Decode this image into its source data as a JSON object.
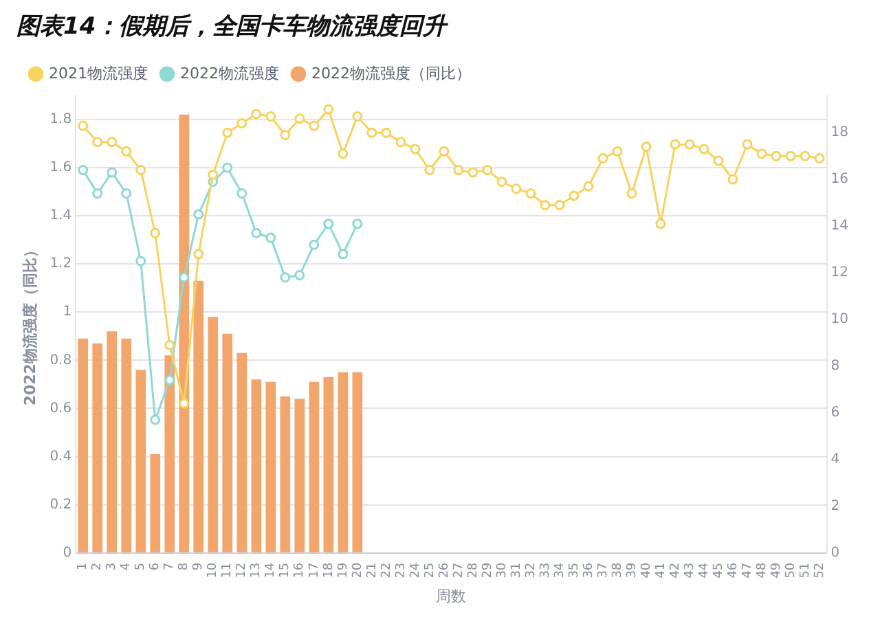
{
  "chart_data": {
    "type": "bar",
    "title": "图表14：假期后，全国卡车物流强度回升",
    "xlabel": "周数",
    "ylabel": "2022物流强度（同比）",
    "categories": [
      "1",
      "2",
      "3",
      "4",
      "5",
      "6",
      "7",
      "8",
      "9",
      "10",
      "11",
      "12",
      "13",
      "14",
      "15",
      "16",
      "17",
      "18",
      "19",
      "20",
      "21",
      "22",
      "23",
      "24",
      "25",
      "26",
      "27",
      "28",
      "29",
      "30",
      "31",
      "32",
      "33",
      "34",
      "35",
      "36",
      "37",
      "38",
      "39",
      "40",
      "41",
      "42",
      "43",
      "44",
      "45",
      "46",
      "47",
      "48",
      "49",
      "50",
      "51",
      "52"
    ],
    "series": [
      {
        "type": "line",
        "axis": "y2",
        "name": "2021物流强度",
        "color": "#f8d25e",
        "values": [
          18.3,
          17.6,
          17.6,
          17.2,
          16.4,
          13.7,
          8.9,
          6.4,
          12.8,
          16.2,
          18.0,
          18.4,
          18.8,
          18.7,
          17.9,
          18.6,
          18.3,
          19.0,
          17.1,
          18.7,
          18.0,
          18.0,
          17.6,
          17.3,
          16.4,
          17.2,
          16.4,
          16.3,
          16.4,
          15.9,
          15.6,
          15.4,
          14.9,
          14.9,
          15.3,
          15.7,
          16.9,
          17.2,
          15.4,
          17.4,
          14.1,
          17.5,
          17.5,
          17.3,
          16.8,
          16.0,
          17.5,
          17.1,
          17.0,
          17.0,
          17.0,
          16.9
        ]
      },
      {
        "type": "line",
        "axis": "y2",
        "name": "2022物流强度",
        "color": "#8fd8d3",
        "values": [
          16.4,
          15.4,
          16.3,
          15.4,
          12.5,
          5.7,
          7.4,
          11.8,
          14.5,
          15.9,
          16.5,
          15.4,
          13.7,
          13.5,
          11.8,
          11.9,
          13.2,
          14.1,
          12.8,
          14.1,
          null,
          null,
          null,
          null,
          null,
          null,
          null,
          null,
          null,
          null,
          null,
          null,
          null,
          null,
          null,
          null,
          null,
          null,
          null,
          null,
          null,
          null,
          null,
          null,
          null,
          null,
          null,
          null,
          null,
          null,
          null,
          null
        ]
      },
      {
        "axis": "y",
        "name": "2022物流强度（同比）",
        "color": "#f2a66b",
        "values": [
          0.89,
          0.87,
          0.92,
          0.89,
          0.76,
          0.41,
          0.82,
          1.82,
          1.13,
          0.98,
          0.91,
          0.83,
          0.72,
          0.71,
          0.65,
          0.64,
          0.71,
          0.73,
          0.75,
          0.75,
          null,
          null,
          null,
          null,
          null,
          null,
          null,
          null,
          null,
          null,
          null,
          null,
          null,
          null,
          null,
          null,
          null,
          null,
          null,
          null,
          null,
          null,
          null,
          null,
          null,
          null,
          null,
          null,
          null,
          null,
          null,
          null
        ]
      }
    ],
    "ylim": [
      0,
      1.9
    ],
    "yticks": [
      0,
      0.2,
      0.4,
      0.6,
      0.8,
      1,
      1.2,
      1.4,
      1.6,
      1.8
    ],
    "y2lim": [
      0,
      19.6
    ],
    "y2ticks": [
      0,
      2,
      4,
      6,
      8,
      10,
      12,
      14,
      16,
      18
    ],
    "grid": "y",
    "legend": "top left",
    "marker": "circle",
    "line_style": "solid"
  }
}
